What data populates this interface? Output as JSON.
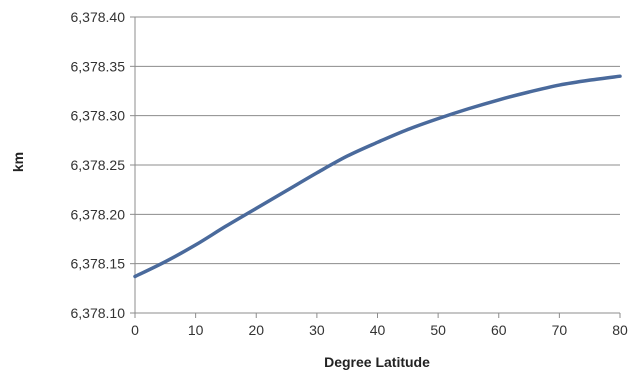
{
  "chart_data": {
    "type": "line",
    "title": "",
    "xlabel": "Degree Latitude",
    "ylabel": "km",
    "xlim": [
      0,
      80
    ],
    "ylim": [
      6378.1,
      6378.4
    ],
    "x_ticks": [
      0,
      10,
      20,
      30,
      40,
      50,
      60,
      70,
      80
    ],
    "x_tick_labels": [
      "0",
      "10",
      "20",
      "30",
      "40",
      "50",
      "60",
      "70",
      "80"
    ],
    "y_ticks": [
      6378.1,
      6378.15,
      6378.2,
      6378.25,
      6378.3,
      6378.35,
      6378.4
    ],
    "y_tick_labels": [
      "6,378.10",
      "6,378.15",
      "6,378.20",
      "6,378.25",
      "6,378.30",
      "6,378.35",
      "6,378.40"
    ],
    "grid": "horizontal",
    "legend": "none",
    "series": [
      {
        "color": "#4a6a9c",
        "x": [
          0,
          5,
          10,
          15,
          20,
          25,
          30,
          35,
          40,
          45,
          50,
          55,
          60,
          65,
          70,
          75,
          80
        ],
        "values": [
          6378.137,
          6378.152,
          6378.169,
          6378.188,
          6378.206,
          6378.224,
          6378.242,
          6378.259,
          6378.273,
          6378.286,
          6378.297,
          6378.307,
          6378.316,
          6378.324,
          6378.331,
          6378.336,
          6378.34
        ]
      }
    ]
  }
}
